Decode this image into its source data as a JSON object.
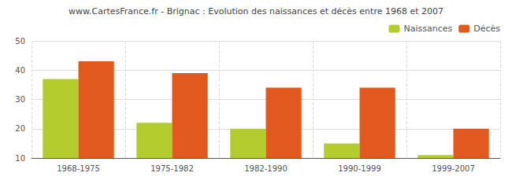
{
  "chart_data": {
    "type": "bar",
    "title": "www.CartesFrance.fr - Brignac : Evolution des naissances et décès entre 1968 et 2007",
    "categories": [
      "1968-1975",
      "1975-1982",
      "1982-1990",
      "1990-1999",
      "1999-2007"
    ],
    "series": [
      {
        "name": "Naissances",
        "color": "#b5cc2e",
        "values": [
          37,
          22,
          20,
          15,
          11
        ]
      },
      {
        "name": "Décès",
        "color": "#e05a1e",
        "values": [
          43,
          39,
          34,
          34,
          20
        ]
      }
    ],
    "ylim": [
      10,
      50
    ],
    "yticks": [
      10,
      20,
      30,
      40,
      50
    ],
    "grid": true,
    "legend": "upper right"
  }
}
